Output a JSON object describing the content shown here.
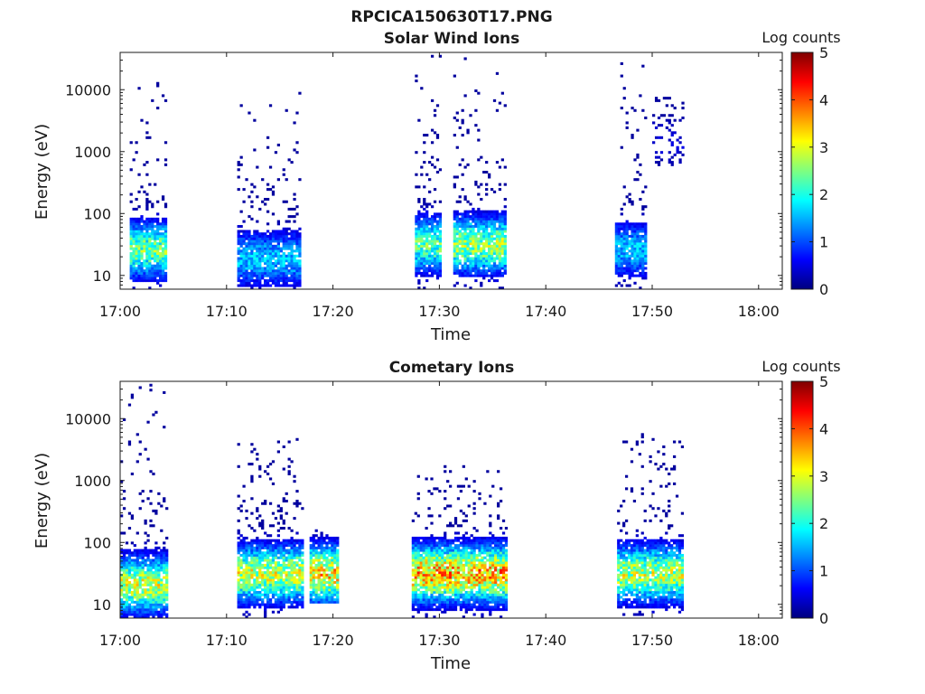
{
  "figure": {
    "title": "RPCICA150630T17.PNG"
  },
  "colors": {
    "axis": "#1a1a1a",
    "background": "#ffffff",
    "colormap": [
      "#00007f",
      "#0000ff",
      "#007fff",
      "#00ffff",
      "#7fff7f",
      "#ffff00",
      "#ff7f00",
      "#ff0000",
      "#7f0000"
    ]
  },
  "chart_data": [
    {
      "type": "heatmap",
      "title": "Solar Wind Ions",
      "xlabel": "Time",
      "ylabel": "Energy (eV)",
      "x_ticks": [
        "17:00",
        "17:10",
        "17:20",
        "17:30",
        "17:40",
        "17:50",
        "18:00"
      ],
      "xlim": [
        "17:00",
        "18:02"
      ],
      "y_scale": "log",
      "y_ticks": [
        "10",
        "100",
        "1000",
        "10000"
      ],
      "ylim": [
        6,
        40000
      ],
      "colorbar": {
        "label": "Log counts",
        "ticks": [
          "0",
          "1",
          "2",
          "3",
          "4",
          "5"
        ],
        "range": [
          0,
          5
        ]
      },
      "bursts": [
        {
          "start_min": 0.9,
          "end_min": 4.4,
          "energy_min_eV": 6,
          "energy_max_eV": 15000,
          "peak_log_counts": 2.8,
          "core_energy_eV": 25
        },
        {
          "start_min": 11.0,
          "end_min": 17.0,
          "energy_min_eV": 6,
          "energy_max_eV": 13000,
          "peak_log_counts": 1.8,
          "core_energy_eV": 18
        },
        {
          "start_min": 27.7,
          "end_min": 30.2,
          "energy_min_eV": 6,
          "energy_max_eV": 40000,
          "peak_log_counts": 2.6,
          "core_energy_eV": 30
        },
        {
          "start_min": 31.3,
          "end_min": 36.3,
          "energy_min_eV": 6,
          "energy_max_eV": 38000,
          "peak_log_counts": 3.0,
          "core_energy_eV": 30
        },
        {
          "start_min": 46.5,
          "end_min": 49.4,
          "energy_min_eV": 6,
          "energy_max_eV": 28000,
          "peak_log_counts": 1.8,
          "core_energy_eV": 25
        },
        {
          "start_min": 50.0,
          "end_min": 52.8,
          "energy_min_eV": 600,
          "energy_max_eV": 10000,
          "peak_log_counts": 0.5,
          "core_energy_eV": 1400
        }
      ]
    },
    {
      "type": "heatmap",
      "title": "Cometary Ions",
      "xlabel": "Time",
      "ylabel": "Energy (eV)",
      "x_ticks": [
        "17:00",
        "17:10",
        "17:20",
        "17:30",
        "17:40",
        "17:50",
        "18:00"
      ],
      "xlim": [
        "17:00",
        "18:02"
      ],
      "y_scale": "log",
      "y_ticks": [
        "10",
        "100",
        "1000",
        "10000"
      ],
      "ylim": [
        6,
        40000
      ],
      "colorbar": {
        "label": "Log counts",
        "ticks": [
          "0",
          "1",
          "2",
          "3",
          "4",
          "5"
        ],
        "range": [
          0,
          5
        ]
      },
      "bursts": [
        {
          "start_min": 0.0,
          "end_min": 4.5,
          "energy_min_eV": 6,
          "energy_max_eV": 34000,
          "peak_log_counts": 3.3,
          "core_energy_eV": 20
        },
        {
          "start_min": 11.0,
          "end_min": 17.2,
          "energy_min_eV": 6,
          "energy_max_eV": 6000,
          "peak_log_counts": 3.3,
          "core_energy_eV": 30
        },
        {
          "start_min": 17.8,
          "end_min": 20.5,
          "energy_min_eV": 10,
          "energy_max_eV": 150,
          "peak_log_counts": 3.8,
          "core_energy_eV": 30
        },
        {
          "start_min": 27.4,
          "end_min": 36.4,
          "energy_min_eV": 6,
          "energy_max_eV": 1800,
          "peak_log_counts": 4.0,
          "core_energy_eV": 30
        },
        {
          "start_min": 46.7,
          "end_min": 52.9,
          "energy_min_eV": 6,
          "energy_max_eV": 5500,
          "peak_log_counts": 3.2,
          "core_energy_eV": 30
        }
      ]
    }
  ]
}
